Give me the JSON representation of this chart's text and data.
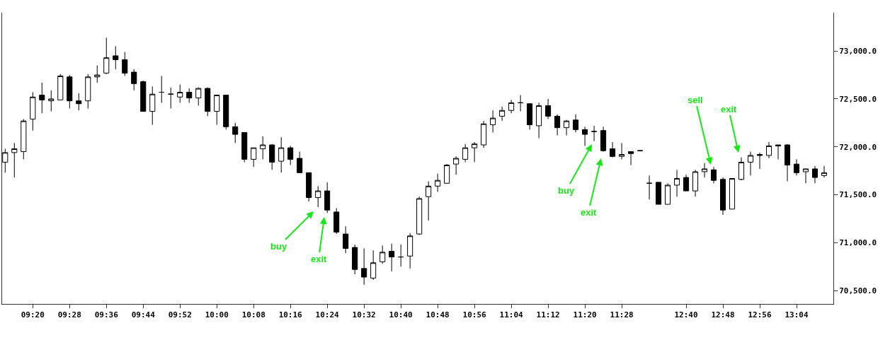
{
  "chart_data": {
    "type": "candlestick",
    "color": "#000000",
    "grid": false,
    "categories": [
      null,
      null,
      null,
      "09:20",
      null,
      null,
      null,
      "09:28",
      null,
      null,
      null,
      "09:36",
      null,
      null,
      null,
      "09:44",
      null,
      null,
      null,
      "09:52",
      null,
      null,
      null,
      "10:00",
      null,
      null,
      null,
      "10:08",
      null,
      null,
      null,
      "10:16",
      null,
      null,
      null,
      "10:24",
      null,
      null,
      null,
      "10:32",
      null,
      null,
      null,
      "10:40",
      null,
      null,
      null,
      "10:48",
      null,
      null,
      null,
      "10:56",
      null,
      null,
      null,
      "11:04",
      null,
      null,
      null,
      "11:12",
      null,
      null,
      null,
      "11:20",
      null,
      null,
      null,
      "11:28",
      null,
      null,
      null,
      null,
      null,
      null,
      "12:40",
      null,
      null,
      null,
      "12:48",
      null,
      null,
      null,
      "12:56",
      null,
      null,
      null,
      "13:04",
      null,
      null,
      null
    ],
    "ohlc": [
      [
        71840,
        71980,
        71730,
        71940
      ],
      [
        71940,
        72040,
        71680,
        71980
      ],
      [
        71950,
        72290,
        71870,
        72270
      ],
      [
        72290,
        72570,
        72170,
        72520
      ],
      [
        72540,
        72670,
        72350,
        72490
      ],
      [
        72480,
        72590,
        72370,
        72500
      ],
      [
        72490,
        72760,
        72490,
        72740
      ],
      [
        72730,
        72750,
        72400,
        72480
      ],
      [
        72480,
        72560,
        72380,
        72450
      ],
      [
        72480,
        72760,
        72400,
        72730
      ],
      [
        72730,
        72850,
        72670,
        72750
      ],
      [
        72770,
        73140,
        72760,
        72930
      ],
      [
        72950,
        73050,
        72810,
        72910
      ],
      [
        72910,
        72990,
        72740,
        72770
      ],
      [
        72780,
        72810,
        72590,
        72660
      ],
      [
        72680,
        72690,
        72370,
        72370
      ],
      [
        72370,
        72630,
        72230,
        72550
      ],
      [
        72570,
        72740,
        72460,
        72570
      ],
      [
        72550,
        72620,
        72400,
        72550
      ],
      [
        72520,
        72650,
        72460,
        72570
      ],
      [
        72570,
        72610,
        72460,
        72510
      ],
      [
        72510,
        72620,
        72430,
        72610
      ],
      [
        72610,
        72620,
        72320,
        72370
      ],
      [
        72370,
        72540,
        72230,
        72540
      ],
      [
        72540,
        72540,
        72180,
        72210
      ],
      [
        72210,
        72250,
        72040,
        72130
      ],
      [
        72150,
        72150,
        71840,
        71870
      ],
      [
        71870,
        71990,
        71790,
        71990
      ],
      [
        71980,
        72110,
        71870,
        72020
      ],
      [
        72020,
        72030,
        71760,
        71840
      ],
      [
        71850,
        72100,
        71730,
        71990
      ],
      [
        71990,
        72010,
        71810,
        71870
      ],
      [
        71880,
        71950,
        71730,
        71730
      ],
      [
        71730,
        71730,
        71430,
        71470
      ],
      [
        71470,
        71590,
        71370,
        71540
      ],
      [
        71540,
        71630,
        71310,
        71340
      ],
      [
        71320,
        71360,
        71090,
        71110
      ],
      [
        71090,
        71170,
        70890,
        70940
      ],
      [
        70950,
        70980,
        70670,
        70720
      ],
      [
        70730,
        70940,
        70560,
        70640
      ],
      [
        70630,
        70920,
        70610,
        70790
      ],
      [
        70800,
        70970,
        70780,
        70900
      ],
      [
        70910,
        70990,
        70700,
        70850
      ],
      [
        70850,
        70980,
        70750,
        70850
      ],
      [
        70860,
        71100,
        70730,
        71070
      ],
      [
        71090,
        71480,
        71080,
        71460
      ],
      [
        71480,
        71640,
        71230,
        71590
      ],
      [
        71590,
        71720,
        71530,
        71650
      ],
      [
        71620,
        71820,
        71620,
        71810
      ],
      [
        71820,
        71900,
        71710,
        71880
      ],
      [
        71870,
        72030,
        71840,
        71990
      ],
      [
        71990,
        72050,
        71840,
        72030
      ],
      [
        72020,
        72270,
        71990,
        72240
      ],
      [
        72230,
        72380,
        72150,
        72300
      ],
      [
        72320,
        72420,
        72270,
        72380
      ],
      [
        72380,
        72490,
        72350,
        72460
      ],
      [
        72460,
        72540,
        72370,
        72460
      ],
      [
        72450,
        72450,
        72180,
        72230
      ],
      [
        72220,
        72460,
        72090,
        72430
      ],
      [
        72430,
        72500,
        72290,
        72320
      ],
      [
        72320,
        72340,
        72120,
        72200
      ],
      [
        72200,
        72280,
        72120,
        72270
      ],
      [
        72280,
        72340,
        72150,
        72180
      ],
      [
        72180,
        72210,
        72010,
        72130
      ],
      [
        72160,
        72220,
        72060,
        72160
      ],
      [
        72170,
        72210,
        71950,
        71960
      ],
      [
        71980,
        72050,
        71890,
        71900
      ],
      [
        71900,
        72040,
        71870,
        71920
      ],
      [
        71950,
        71950,
        71810,
        71930
      ],
      [
        71960,
        71960,
        71960,
        71960
      ],
      [
        71620,
        71700,
        71450,
        71620
      ],
      [
        71630,
        71630,
        71400,
        71400
      ],
      [
        71400,
        71620,
        71400,
        71600
      ],
      [
        71600,
        71760,
        71480,
        71670
      ],
      [
        71680,
        71710,
        71540,
        71540
      ],
      [
        71540,
        71760,
        71480,
        71740
      ],
      [
        71740,
        71830,
        71680,
        71770
      ],
      [
        71760,
        71790,
        71620,
        71650
      ],
      [
        71660,
        71680,
        71290,
        71340
      ],
      [
        71350,
        71670,
        71350,
        71670
      ],
      [
        71660,
        71890,
        71650,
        71840
      ],
      [
        71840,
        71950,
        71700,
        71910
      ],
      [
        71920,
        71940,
        71770,
        71910
      ],
      [
        71910,
        72050,
        71880,
        72010
      ],
      [
        72020,
        72020,
        71870,
        72010
      ],
      [
        72020,
        72030,
        71640,
        71810
      ],
      [
        71820,
        71870,
        71700,
        71730
      ],
      [
        71740,
        71770,
        71620,
        71770
      ],
      [
        71770,
        71800,
        71620,
        71680
      ],
      [
        71700,
        71800,
        71680,
        71730
      ]
    ],
    "ylim": [
      70360,
      73400
    ],
    "yticks": [
      {
        "value": 70500,
        "label": "70,500.0"
      },
      {
        "value": 71000,
        "label": "71,000.0"
      },
      {
        "value": 71500,
        "label": "71,500.0"
      },
      {
        "value": 72000,
        "label": "72,000.0"
      },
      {
        "value": 72500,
        "label": "72,500.0"
      },
      {
        "value": 73000,
        "label": "73,000.0"
      }
    ],
    "annotations": [
      "buy",
      "exit",
      "buy",
      "exit",
      "sell",
      "exit"
    ]
  }
}
